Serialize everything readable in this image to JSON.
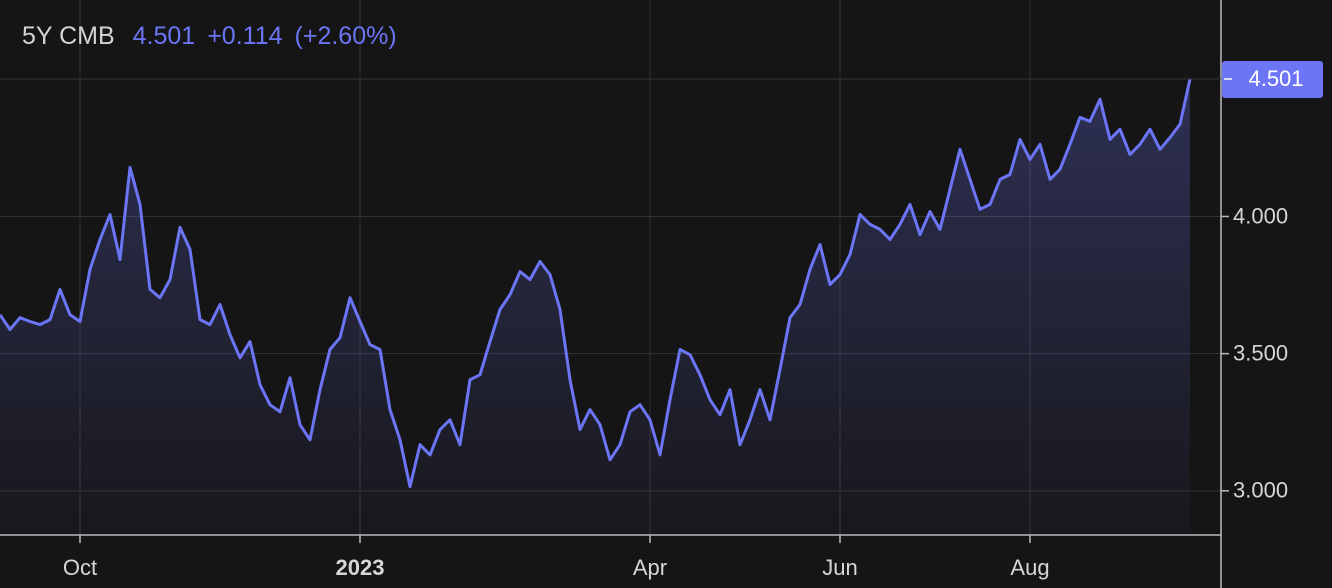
{
  "chart_data": {
    "type": "line",
    "header": {
      "symbol": "5Y CMB",
      "price": "4.501",
      "change": "+0.114",
      "change_pct": "(+2.60%)"
    },
    "last_value_label": "4.501",
    "categories": [
      null,
      null,
      null,
      null,
      null,
      null,
      null,
      null,
      "Oct",
      null,
      null,
      null,
      null,
      null,
      null,
      null,
      null,
      null,
      null,
      null,
      null,
      null,
      null,
      null,
      null,
      null,
      null,
      null,
      null,
      null,
      null,
      null,
      null,
      null,
      null,
      null,
      "2023",
      null,
      null,
      null,
      null,
      null,
      null,
      null,
      null,
      null,
      null,
      null,
      null,
      null,
      null,
      null,
      null,
      null,
      null,
      null,
      null,
      null,
      null,
      null,
      null,
      null,
      null,
      null,
      null,
      "Apr",
      null,
      null,
      null,
      null,
      null,
      null,
      null,
      null,
      null,
      null,
      null,
      null,
      null,
      null,
      null,
      null,
      null,
      null,
      "Jun",
      null,
      null,
      null,
      null,
      null,
      null,
      null,
      null,
      null,
      null,
      null,
      null,
      null,
      null,
      null,
      null,
      null,
      null,
      "Aug",
      null,
      null,
      null,
      null,
      null,
      null,
      null,
      null,
      null,
      null,
      null,
      null,
      null,
      null,
      null,
      null
    ],
    "series": [
      {
        "color": "#6c75f6",
        "values": [
          3.642,
          3.588,
          3.631,
          3.617,
          3.606,
          3.624,
          3.734,
          3.642,
          3.617,
          3.807,
          3.916,
          4.007,
          3.843,
          4.179,
          4.044,
          3.734,
          3.704,
          3.77,
          3.96,
          3.88,
          3.624,
          3.606,
          3.679,
          3.569,
          3.485,
          3.544,
          3.387,
          3.314,
          3.288,
          3.412,
          3.241,
          3.186,
          3.369,
          3.515,
          3.558,
          3.704,
          3.617,
          3.533,
          3.515,
          3.296,
          3.186,
          3.015,
          3.168,
          3.131,
          3.223,
          3.259,
          3.168,
          3.405,
          3.423,
          3.544,
          3.661,
          3.715,
          3.799,
          3.77,
          3.836,
          3.788,
          3.661,
          3.405,
          3.223,
          3.296,
          3.241,
          3.113,
          3.168,
          3.288,
          3.314,
          3.259,
          3.131,
          3.332,
          3.515,
          3.496,
          3.423,
          3.332,
          3.277,
          3.369,
          3.168,
          3.259,
          3.369,
          3.259,
          3.442,
          3.631,
          3.679,
          3.807,
          3.898,
          3.752,
          3.788,
          3.861,
          4.007,
          3.971,
          3.953,
          3.916,
          3.971,
          4.044,
          3.934,
          4.018,
          3.953,
          4.099,
          4.245,
          4.135,
          4.026,
          4.044,
          4.135,
          4.153,
          4.281,
          4.208,
          4.263,
          4.135,
          4.172,
          4.263,
          4.361,
          4.347,
          4.427,
          4.281,
          4.318,
          4.226,
          4.263,
          4.318,
          4.245,
          4.288,
          4.336,
          4.501
        ]
      }
    ],
    "ylim": [
      2.839,
      4.789
    ],
    "yticks": [
      {
        "value": 3,
        "label": "3.000"
      },
      {
        "value": 3.5,
        "label": "3.500"
      },
      {
        "value": 4,
        "label": "4.000"
      }
    ],
    "grid": true
  }
}
